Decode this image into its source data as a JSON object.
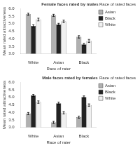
{
  "chart_data": [
    {
      "type": "bar",
      "title": "Female faces rated by males",
      "xlabel": "Race of rater",
      "ylabel": "Mean rated attractiveness",
      "legend_title": "Race of rated faces",
      "legend": "right",
      "grid": false,
      "categories": [
        "White",
        "Asian",
        "Black"
      ],
      "series": [
        {
          "name": "Asian",
          "color": "#b0b0b0",
          "values": [
            5.62,
            5.55,
            4.12
          ],
          "errors": [
            0.07,
            0.07,
            0.08
          ]
        },
        {
          "name": "Black",
          "color": "#222222",
          "values": [
            4.85,
            4.95,
            3.62
          ],
          "errors": [
            0.08,
            0.07,
            0.07
          ]
        },
        {
          "name": "White",
          "color": "#f0f0f0",
          "values": [
            5.27,
            5.15,
            3.85
          ],
          "errors": [
            0.09,
            0.08,
            0.1
          ]
        }
      ],
      "ylim": [
        3.0,
        6.0
      ],
      "yticks": [
        {
          "value": 3.0,
          "label": "3.0"
        },
        {
          "value": 3.5,
          "label": "3.5"
        },
        {
          "value": 4.0,
          "label": "4.0"
        },
        {
          "value": 4.5,
          "label": "4.5"
        },
        {
          "value": 5.0,
          "label": "5.0"
        },
        {
          "value": 5.5,
          "label": "5.5"
        },
        {
          "value": 6.0,
          "label": "6.0"
        }
      ]
    },
    {
      "type": "bar",
      "title": "Male faces rated by females",
      "xlabel": "Race of rater",
      "ylabel": "Mean rated attractiveness",
      "legend_title": "Race of rated faces",
      "legend": "right",
      "grid": false,
      "categories": [
        "White",
        "Asian",
        "Black"
      ],
      "series": [
        {
          "name": "Asian",
          "color": "#b0b0b0",
          "values": [
            3.92,
            3.33,
            3.68
          ],
          "errors": [
            0.07,
            0.07,
            0.07
          ]
        },
        {
          "name": "Black",
          "color": "#222222",
          "values": [
            5.12,
            4.6,
            5.02
          ],
          "errors": [
            0.07,
            0.08,
            0.07
          ]
        },
        {
          "name": "White",
          "color": "#f0f0f0",
          "values": [
            4.68,
            3.97,
            4.48
          ],
          "errors": [
            0.08,
            0.08,
            0.08
          ]
        }
      ],
      "ylim": [
        3.0,
        6.0
      ],
      "yticks": [
        {
          "value": 3.0,
          "label": "3.0"
        },
        {
          "value": 3.5,
          "label": "3.5"
        },
        {
          "value": 4.0,
          "label": "4.0"
        },
        {
          "value": 4.5,
          "label": "4.5"
        },
        {
          "value": 5.0,
          "label": "5.0"
        },
        {
          "value": 5.5,
          "label": "5.5"
        },
        {
          "value": 6.0,
          "label": "6.0"
        }
      ]
    }
  ]
}
